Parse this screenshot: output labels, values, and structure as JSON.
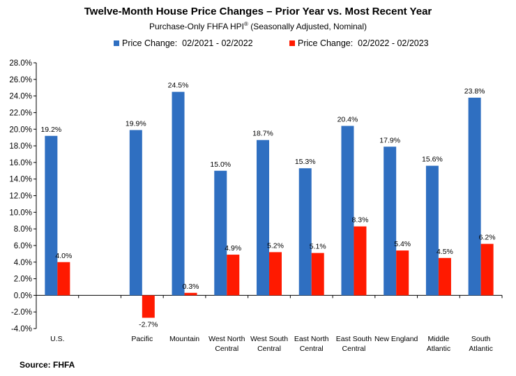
{
  "title": "Twelve-Month House Price Changes – Prior Year vs. Most Recent Year",
  "subtitle": "Purchase-Only FHFA HPI",
  "subtitle_mark": "®",
  "subtitle_suffix": " (Seasonally Adjusted, Nominal)",
  "source": "Source: FHFA",
  "colors": {
    "series1": "#2f6fc1",
    "series2": "#ff1a00"
  },
  "chart_data": {
    "type": "bar",
    "title": "Twelve-Month House Price Changes – Prior Year vs. Most Recent Year",
    "xlabel": "",
    "ylabel": "",
    "ylim": [
      -4,
      28
    ],
    "ytick_step": 2,
    "ytick_labels": [
      "-4.0%",
      "-2.0%",
      "0.0%",
      "2.0%",
      "4.0%",
      "6.0%",
      "8.0%",
      "10.0%",
      "12.0%",
      "14.0%",
      "16.0%",
      "18.0%",
      "20.0%",
      "22.0%",
      "24.0%",
      "26.0%",
      "28.0%"
    ],
    "legend_position": "top-center",
    "categories": [
      [
        "U.S."
      ],
      [
        ""
      ],
      [
        "Pacific"
      ],
      [
        "Mountain"
      ],
      [
        "West North",
        "Central"
      ],
      [
        "West South",
        "Central"
      ],
      [
        "East North",
        "Central"
      ],
      [
        "East South",
        "Central"
      ],
      [
        "New England"
      ],
      [
        "Middle",
        "Atlantic"
      ],
      [
        "South",
        "Atlantic"
      ]
    ],
    "series": [
      {
        "name": "Price Change:  02/2021 - 02/2022",
        "values": [
          19.2,
          null,
          19.9,
          24.5,
          15.0,
          18.7,
          15.3,
          20.4,
          17.9,
          15.6,
          23.8
        ],
        "labels": [
          "19.2%",
          null,
          "19.9%",
          "24.5%",
          "15.0%",
          "18.7%",
          "15.3%",
          "20.4%",
          "17.9%",
          "15.6%",
          "23.8%"
        ]
      },
      {
        "name": "Price Change:  02/2022 - 02/2023",
        "values": [
          4.0,
          null,
          -2.7,
          0.3,
          4.9,
          5.2,
          5.1,
          8.3,
          5.4,
          4.5,
          6.2
        ],
        "labels": [
          "4.0%",
          null,
          "-2.7%",
          "0.3%",
          "4.9%",
          "5.2%",
          "5.1%",
          "8.3%",
          "5.4%",
          "4.5%",
          "6.2%"
        ]
      }
    ]
  }
}
